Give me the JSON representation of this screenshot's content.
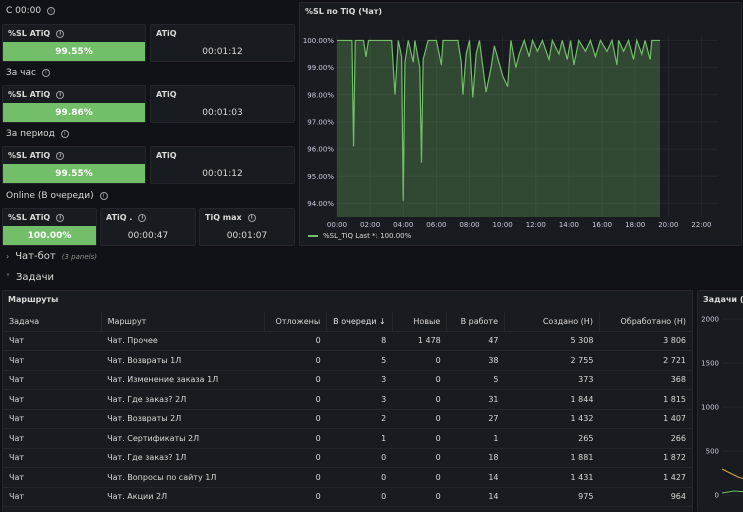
{
  "sections": {
    "since_midnight": "С 00:00",
    "per_hour": "За час",
    "per_period": "За период",
    "online": "Online (В очереди)"
  },
  "stats": {
    "since_midnight": {
      "sl_label": "%SL ATiQ",
      "sl_value": "99.55%",
      "atiq_label": "ATiQ",
      "atiq_value": "00:01:12"
    },
    "per_hour": {
      "sl_label": "%SL ATiQ",
      "sl_value": "99.86%",
      "atiq_label": "ATiQ",
      "atiq_value": "00:01:03"
    },
    "per_period": {
      "sl_label": "%SL ATiQ",
      "sl_value": "99.55%",
      "atiq_label": "ATiQ",
      "atiq_value": "00:01:12"
    },
    "online": {
      "sl_label": "%SL ATiQ",
      "sl_value": "100.00%",
      "atiq_label": "ATiQ .",
      "atiq_value": "00:00:47",
      "tiq_label": "TiQ max",
      "tiq_value": "00:01:07"
    }
  },
  "chart": {
    "title": "%SL по TiQ (Чат)",
    "legend": "%SL_TiQ  Last *: 100.00%"
  },
  "chart_data": {
    "type": "area",
    "title": "%SL по TiQ (Чат)",
    "x_ticks": [
      "00:00",
      "02:00",
      "04:00",
      "06:00",
      "08:00",
      "10:00",
      "12:00",
      "14:00",
      "16:00",
      "18:00",
      "20:00",
      "22:00"
    ],
    "y_ticks": [
      "94.00%",
      "95.00%",
      "96.00%",
      "97.00%",
      "98.00%",
      "99.00%",
      "100.00%"
    ],
    "ylim": [
      93.5,
      100.2
    ],
    "xlim_hours": [
      0,
      23
    ],
    "series": [
      {
        "name": "%SL_TiQ",
        "color": "#73bf69",
        "points": [
          [
            0.0,
            100
          ],
          [
            0.6,
            100
          ],
          [
            0.9,
            100
          ],
          [
            1.0,
            96.1
          ],
          [
            1.1,
            100
          ],
          [
            1.6,
            100
          ],
          [
            1.75,
            99.4
          ],
          [
            1.9,
            100
          ],
          [
            3.3,
            100
          ],
          [
            3.5,
            98.0
          ],
          [
            3.7,
            100
          ],
          [
            3.9,
            99.4
          ],
          [
            4.0,
            94.1
          ],
          [
            4.1,
            99.2
          ],
          [
            4.3,
            100
          ],
          [
            4.6,
            99.2
          ],
          [
            4.7,
            100
          ],
          [
            5.0,
            99.0
          ],
          [
            5.1,
            95.5
          ],
          [
            5.2,
            99.3
          ],
          [
            5.5,
            100
          ],
          [
            6.0,
            100
          ],
          [
            6.3,
            99.1
          ],
          [
            6.4,
            100
          ],
          [
            7.3,
            100
          ],
          [
            7.5,
            99.2
          ],
          [
            7.6,
            98.0
          ],
          [
            7.8,
            99.5
          ],
          [
            8.0,
            100
          ],
          [
            8.2,
            97.9
          ],
          [
            8.4,
            99.5
          ],
          [
            8.6,
            100
          ],
          [
            9.0,
            98.1
          ],
          [
            9.3,
            99.0
          ],
          [
            9.5,
            99.8
          ],
          [
            10.0,
            98.7
          ],
          [
            10.3,
            98.3
          ],
          [
            10.5,
            100
          ],
          [
            10.8,
            99.0
          ],
          [
            11.0,
            99.5
          ],
          [
            11.3,
            100
          ],
          [
            11.6,
            99.4
          ],
          [
            11.8,
            100
          ],
          [
            12.1,
            99.6
          ],
          [
            12.4,
            100
          ],
          [
            12.8,
            99.3
          ],
          [
            13.0,
            100
          ],
          [
            13.4,
            99.5
          ],
          [
            13.6,
            100
          ],
          [
            13.9,
            99.3
          ],
          [
            14.1,
            100
          ],
          [
            14.3,
            99.1
          ],
          [
            14.6,
            100
          ],
          [
            15.0,
            99.6
          ],
          [
            15.3,
            100
          ],
          [
            15.6,
            99.4
          ],
          [
            15.9,
            100
          ],
          [
            16.3,
            99.6
          ],
          [
            16.6,
            100
          ],
          [
            16.9,
            99.1
          ],
          [
            17.0,
            100
          ],
          [
            17.3,
            99.6
          ],
          [
            17.6,
            100
          ],
          [
            17.9,
            99.3
          ],
          [
            18.1,
            100
          ],
          [
            18.4,
            99.5
          ],
          [
            18.6,
            100
          ],
          [
            18.9,
            99.3
          ],
          [
            19.0,
            100
          ],
          [
            19.5,
            100
          ]
        ]
      }
    ]
  },
  "sections2": {
    "chatbot": "Чат-бот",
    "chatbot_hint": "(3 panels)",
    "tasks": "Задачи"
  },
  "routes": {
    "title": "Маршруты",
    "columns": [
      "Задача",
      "Маршрут",
      "Отложены",
      "В очереди ↓",
      "Новые",
      "В работе",
      "Создано (Н)",
      "Обработано (Н)"
    ],
    "rows": [
      [
        "Чат",
        "Чат. Прочее",
        "0",
        "8",
        "1 478",
        "47",
        "5 308",
        "3 806"
      ],
      [
        "Чат",
        "Чат. Возвраты 1Л",
        "0",
        "5",
        "0",
        "38",
        "2 755",
        "2 721"
      ],
      [
        "Чат",
        "Чат. Изменение заказа 1Л",
        "0",
        "3",
        "0",
        "5",
        "373",
        "368"
      ],
      [
        "Чат",
        "Чат. Где заказ? 2Л",
        "0",
        "3",
        "0",
        "31",
        "1 844",
        "1 815"
      ],
      [
        "Чат",
        "Чат. Возвраты 2Л",
        "0",
        "2",
        "0",
        "27",
        "1 432",
        "1 407"
      ],
      [
        "Чат",
        "Чат. Сертификаты 2Л",
        "0",
        "1",
        "0",
        "1",
        "265",
        "266"
      ],
      [
        "Чат",
        "Чат. Где заказ? 1Л",
        "0",
        "0",
        "0",
        "18",
        "1 881",
        "1 872"
      ],
      [
        "Чат",
        "Чат. Вопросы по сайту 1Л",
        "0",
        "0",
        "0",
        "14",
        "1 431",
        "1 427"
      ],
      [
        "Чат",
        "Чат. Акции 2Л",
        "0",
        "0",
        "0",
        "14",
        "975",
        "964"
      ]
    ]
  },
  "tasks_panel": {
    "title": "Задачи (Ча",
    "y_ticks": [
      "2000",
      "1500",
      "1000",
      "500",
      "0"
    ]
  }
}
